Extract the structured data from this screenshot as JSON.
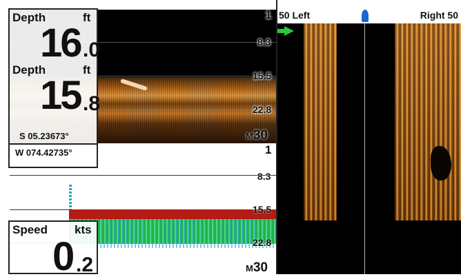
{
  "depth_box_1": {
    "label": "Depth",
    "unit": "ft",
    "whole": "16",
    "decimal": ".0"
  },
  "depth_box_2": {
    "label": "Depth",
    "unit": "ft",
    "whole": "15",
    "decimal": ".8"
  },
  "position": {
    "latitude": "S 05.23673°",
    "longitude": "W 074.42735°"
  },
  "speed_box": {
    "label": "Speed",
    "unit": "kts",
    "whole": "0",
    "decimal": ".2"
  },
  "down_scale": [
    "1",
    "8.3",
    "15.5",
    "22.8",
    "30"
  ],
  "sonar_scale": [
    "1",
    "8.3",
    "15.5",
    "22.8",
    "30"
  ],
  "units_marker": "M",
  "side_imaging": {
    "left_label": "50 Left",
    "right_label": "Right 50"
  },
  "colors": {
    "amber": "#c8781e",
    "bottom_red": "#b51a14",
    "sonar_green": "#1fb34a",
    "boat_blue": "#1a66d6",
    "arrow_green": "#27c93f"
  }
}
